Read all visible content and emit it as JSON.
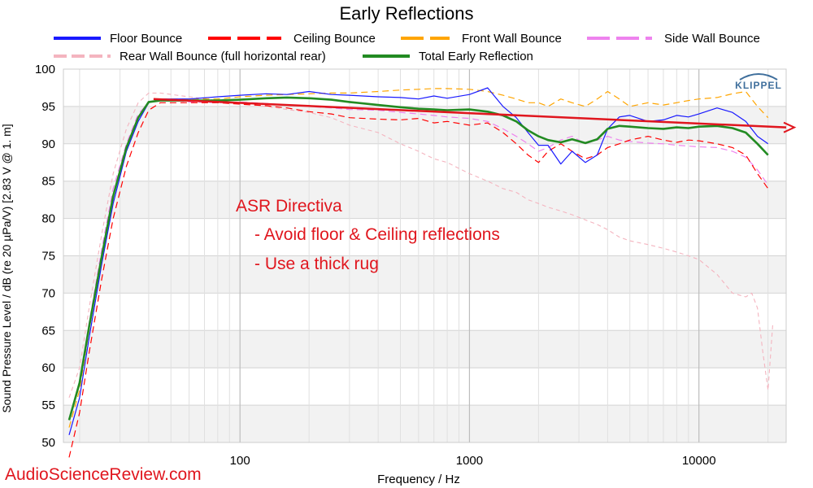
{
  "chart_data": {
    "type": "line",
    "title": "Early Reflections",
    "xlabel": "Frequency / Hz",
    "ylabel": "Sound Pressure Level / dB (re 20 µPa/V)  [2.83  V @ 1. m]",
    "xscale": "log",
    "xlim": [
      17,
      24000
    ],
    "ylim": [
      50,
      100
    ],
    "x_tick_labels": [
      "100",
      "1000",
      "10000"
    ],
    "y_tick_labels": [
      "50",
      "55",
      "60",
      "65",
      "70",
      "75",
      "80",
      "85",
      "90",
      "95",
      "100"
    ],
    "grid": true,
    "legend_position": "top",
    "series": [
      {
        "name": "Floor Bounce",
        "color": "#1a1aff",
        "dash": "solid",
        "points": [
          [
            18,
            51
          ],
          [
            20,
            56
          ],
          [
            22,
            64
          ],
          [
            25,
            74
          ],
          [
            28,
            82
          ],
          [
            32,
            89
          ],
          [
            36,
            93
          ],
          [
            40,
            95.5
          ],
          [
            45,
            96
          ],
          [
            60,
            96
          ],
          [
            80,
            96.3
          ],
          [
            100,
            96.5
          ],
          [
            130,
            96.7
          ],
          [
            160,
            96.6
          ],
          [
            200,
            97
          ],
          [
            250,
            96.6
          ],
          [
            300,
            96.5
          ],
          [
            400,
            96.3
          ],
          [
            500,
            96.2
          ],
          [
            600,
            96
          ],
          [
            700,
            96.4
          ],
          [
            800,
            96.1
          ],
          [
            1000,
            96.6
          ],
          [
            1200,
            97.5
          ],
          [
            1400,
            95
          ],
          [
            1600,
            93.5
          ],
          [
            1800,
            91.5
          ],
          [
            2000,
            89.8
          ],
          [
            2200,
            89.8
          ],
          [
            2500,
            87.3
          ],
          [
            2800,
            89
          ],
          [
            3200,
            87.5
          ],
          [
            3600,
            88.5
          ],
          [
            4000,
            92
          ],
          [
            4500,
            93.6
          ],
          [
            5000,
            93.8
          ],
          [
            6000,
            93
          ],
          [
            7000,
            93.2
          ],
          [
            8000,
            93.8
          ],
          [
            9000,
            93.6
          ],
          [
            10000,
            94
          ],
          [
            12000,
            94.8
          ],
          [
            14000,
            94.2
          ],
          [
            16000,
            93
          ],
          [
            18000,
            91
          ],
          [
            20000,
            90
          ]
        ]
      },
      {
        "name": "Ceiling Bounce",
        "color": "#ff0000",
        "dash": "8,5",
        "points": [
          [
            18,
            48
          ],
          [
            20,
            54
          ],
          [
            22,
            62
          ],
          [
            25,
            72
          ],
          [
            28,
            80
          ],
          [
            32,
            87
          ],
          [
            36,
            91.5
          ],
          [
            40,
            94.5
          ],
          [
            45,
            95.5
          ],
          [
            60,
            95.5
          ],
          [
            80,
            95.5
          ],
          [
            100,
            95.3
          ],
          [
            130,
            95.1
          ],
          [
            160,
            94.8
          ],
          [
            200,
            94.3
          ],
          [
            250,
            94
          ],
          [
            300,
            93.5
          ],
          [
            400,
            93.3
          ],
          [
            500,
            93.2
          ],
          [
            600,
            93.4
          ],
          [
            700,
            92.8
          ],
          [
            800,
            93
          ],
          [
            1000,
            92.5
          ],
          [
            1200,
            92.8
          ],
          [
            1400,
            91.5
          ],
          [
            1600,
            90
          ],
          [
            1800,
            88.5
          ],
          [
            2000,
            87.5
          ],
          [
            2200,
            89
          ],
          [
            2500,
            90
          ],
          [
            2800,
            89
          ],
          [
            3200,
            88
          ],
          [
            3600,
            88.5
          ],
          [
            4000,
            89.5
          ],
          [
            4500,
            90
          ],
          [
            5000,
            90.5
          ],
          [
            6000,
            91
          ],
          [
            7000,
            90.5
          ],
          [
            8000,
            90.2
          ],
          [
            9000,
            90.5
          ],
          [
            10000,
            90.4
          ],
          [
            12000,
            90
          ],
          [
            14000,
            89.5
          ],
          [
            16000,
            88.5
          ],
          [
            18000,
            86
          ],
          [
            20000,
            84
          ]
        ]
      },
      {
        "name": "Front Wall Bounce",
        "color": "#ffa500",
        "dash": "8,5",
        "points": [
          [
            18,
            52
          ],
          [
            20,
            57
          ],
          [
            22,
            65
          ],
          [
            25,
            75
          ],
          [
            28,
            83
          ],
          [
            32,
            89.5
          ],
          [
            36,
            93.5
          ],
          [
            40,
            95.5
          ],
          [
            45,
            96
          ],
          [
            60,
            96
          ],
          [
            80,
            96
          ],
          [
            100,
            96.3
          ],
          [
            130,
            96.5
          ],
          [
            160,
            96.6
          ],
          [
            200,
            96.7
          ],
          [
            250,
            96.8
          ],
          [
            300,
            96.8
          ],
          [
            400,
            97
          ],
          [
            500,
            97.2
          ],
          [
            600,
            97.3
          ],
          [
            700,
            97.4
          ],
          [
            800,
            97.4
          ],
          [
            1000,
            97.3
          ],
          [
            1200,
            97
          ],
          [
            1400,
            96.5
          ],
          [
            1600,
            96
          ],
          [
            1800,
            95.5
          ],
          [
            2000,
            95.5
          ],
          [
            2200,
            95
          ],
          [
            2500,
            96
          ],
          [
            2800,
            95.5
          ],
          [
            3200,
            95
          ],
          [
            3600,
            96
          ],
          [
            4000,
            97
          ],
          [
            4500,
            96
          ],
          [
            5000,
            95
          ],
          [
            6000,
            95.5
          ],
          [
            7000,
            95.2
          ],
          [
            8000,
            95.5
          ],
          [
            9000,
            95.8
          ],
          [
            10000,
            96
          ],
          [
            12000,
            96.2
          ],
          [
            14000,
            96.7
          ],
          [
            16000,
            97
          ],
          [
            18000,
            95
          ],
          [
            20000,
            93.5
          ]
        ]
      },
      {
        "name": "Side Wall Bounce",
        "color": "#ee82ee",
        "dash": "8,5",
        "points": [
          [
            18,
            53
          ],
          [
            20,
            58
          ],
          [
            22,
            66
          ],
          [
            25,
            76
          ],
          [
            28,
            84
          ],
          [
            32,
            90
          ],
          [
            36,
            94
          ],
          [
            40,
            95.5
          ],
          [
            45,
            96
          ],
          [
            60,
            95.6
          ],
          [
            80,
            95.5
          ],
          [
            100,
            95.6
          ],
          [
            130,
            95.4
          ],
          [
            160,
            95.2
          ],
          [
            200,
            95
          ],
          [
            250,
            94.8
          ],
          [
            300,
            94.6
          ],
          [
            400,
            94.5
          ],
          [
            500,
            94.2
          ],
          [
            600,
            94
          ],
          [
            700,
            93.8
          ],
          [
            800,
            93.6
          ],
          [
            1000,
            93.4
          ],
          [
            1200,
            93
          ],
          [
            1400,
            92
          ],
          [
            1600,
            91
          ],
          [
            1800,
            90
          ],
          [
            2000,
            89
          ],
          [
            2200,
            89.5
          ],
          [
            2500,
            90.5
          ],
          [
            2800,
            91
          ],
          [
            3200,
            90
          ],
          [
            3600,
            90.5
          ],
          [
            4000,
            91
          ],
          [
            4500,
            90.5
          ],
          [
            5000,
            90.3
          ],
          [
            6000,
            90.1
          ],
          [
            7000,
            90
          ],
          [
            8000,
            89.8
          ],
          [
            9000,
            89.7
          ],
          [
            10000,
            89.6
          ],
          [
            12000,
            89.5
          ],
          [
            14000,
            89
          ],
          [
            16000,
            88.2
          ],
          [
            18000,
            86.5
          ],
          [
            20000,
            84.5
          ]
        ]
      },
      {
        "name": "Rear Wall Bounce (full horizontal rear)",
        "color": "#f4b4bf",
        "dash": "5,4",
        "points": [
          [
            18,
            56
          ],
          [
            20,
            60
          ],
          [
            22,
            68
          ],
          [
            25,
            78
          ],
          [
            28,
            86
          ],
          [
            32,
            92
          ],
          [
            36,
            95.5
          ],
          [
            40,
            96.8
          ],
          [
            45,
            96.8
          ],
          [
            60,
            96.3
          ],
          [
            80,
            95.8
          ],
          [
            100,
            95.5
          ],
          [
            130,
            95
          ],
          [
            160,
            94.6
          ],
          [
            200,
            94.2
          ],
          [
            250,
            93.5
          ],
          [
            300,
            92.5
          ],
          [
            400,
            91.5
          ],
          [
            500,
            90
          ],
          [
            600,
            89
          ],
          [
            700,
            88
          ],
          [
            800,
            87.5
          ],
          [
            1000,
            86
          ],
          [
            1200,
            85
          ],
          [
            1400,
            84
          ],
          [
            1600,
            83.5
          ],
          [
            1800,
            82.5
          ],
          [
            2000,
            82
          ],
          [
            2200,
            81.5
          ],
          [
            2500,
            81
          ],
          [
            2800,
            80.5
          ],
          [
            3200,
            79.8
          ],
          [
            3600,
            79.2
          ],
          [
            4000,
            78.5
          ],
          [
            4500,
            77.5
          ],
          [
            5000,
            77
          ],
          [
            6000,
            76.5
          ],
          [
            7000,
            76
          ],
          [
            8000,
            75.5
          ],
          [
            9000,
            75
          ],
          [
            10000,
            74.5
          ],
          [
            12000,
            72.5
          ],
          [
            14000,
            70
          ],
          [
            16000,
            69.5
          ],
          [
            17000,
            70
          ],
          [
            18000,
            68
          ],
          [
            19000,
            62
          ],
          [
            20000,
            57
          ],
          [
            21000,
            66
          ]
        ]
      },
      {
        "name": "Total Early Reflection",
        "color": "#228b22",
        "dash": "solid",
        "points": [
          [
            18,
            53
          ],
          [
            20,
            58
          ],
          [
            22,
            65.5
          ],
          [
            25,
            75
          ],
          [
            28,
            83
          ],
          [
            32,
            89.5
          ],
          [
            36,
            93.5
          ],
          [
            40,
            95.6
          ],
          [
            45,
            95.8
          ],
          [
            60,
            95.8
          ],
          [
            80,
            95.8
          ],
          [
            100,
            95.9
          ],
          [
            130,
            96.1
          ],
          [
            160,
            96.2
          ],
          [
            200,
            96.1
          ],
          [
            250,
            95.9
          ],
          [
            300,
            95.6
          ],
          [
            400,
            95.2
          ],
          [
            500,
            94.9
          ],
          [
            600,
            94.7
          ],
          [
            700,
            94.6
          ],
          [
            800,
            94.5
          ],
          [
            1000,
            94.6
          ],
          [
            1200,
            94.3
          ],
          [
            1400,
            93.8
          ],
          [
            1600,
            93
          ],
          [
            1800,
            91.8
          ],
          [
            2000,
            91
          ],
          [
            2200,
            90.5
          ],
          [
            2500,
            90.2
          ],
          [
            2800,
            90.6
          ],
          [
            3200,
            90.1
          ],
          [
            3600,
            90.6
          ],
          [
            4000,
            92
          ],
          [
            4500,
            92.4
          ],
          [
            5000,
            92.3
          ],
          [
            6000,
            92.1
          ],
          [
            7000,
            92
          ],
          [
            8000,
            92.2
          ],
          [
            9000,
            92.1
          ],
          [
            10000,
            92.3
          ],
          [
            12000,
            92.4
          ],
          [
            14000,
            92.1
          ],
          [
            16000,
            91.5
          ],
          [
            18000,
            90
          ],
          [
            20000,
            88.5
          ]
        ]
      }
    ],
    "annotations": {
      "trend_arrow": {
        "x": [
          42,
          24000
        ],
        "y": [
          96,
          92.3
        ],
        "color": "#e0161e"
      },
      "text_lines": [
        "ASR Directiva",
        "- Avoid floor & Ceiling reflections",
        "- Use a thick rug"
      ],
      "watermark": "AudioScienceReview.com",
      "logo": "KLIPPEL"
    }
  }
}
